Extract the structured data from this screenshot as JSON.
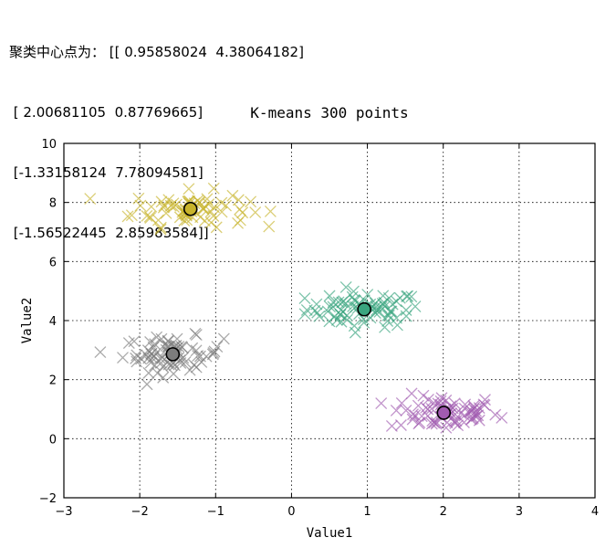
{
  "console": {
    "line1": "聚类中心点为： [[ 0.95858024  4.38064182]",
    "line2": " [ 2.00681105  0.87769665]",
    "line3": " [-1.33158124  7.78094581]",
    "line4": " [-1.56522445  2.85983584]]"
  },
  "chart_data": {
    "type": "scatter",
    "title": "K-means 300 points",
    "xlabel": "Value1",
    "ylabel": "Value2",
    "xlim": [
      -3,
      4
    ],
    "ylim": [
      -2,
      10
    ],
    "x_ticks": [
      -3,
      -2,
      -1,
      0,
      1,
      2,
      3,
      4
    ],
    "y_ticks": [
      -2,
      0,
      2,
      4,
      6,
      8,
      10
    ],
    "x_tick_labels": [
      "−3",
      "−2",
      "−1",
      "0",
      "1",
      "2",
      "3",
      "4"
    ],
    "y_tick_labels": [
      "−2",
      "0",
      "2",
      "4",
      "6",
      "8",
      "10"
    ],
    "grid": true,
    "clusters": [
      {
        "color": "#3aa57f",
        "center": [
          0.95858024,
          4.38064182
        ],
        "spread": [
          0.38,
          0.3
        ],
        "count": 75
      },
      {
        "color": "#a15bb0",
        "center": [
          2.00681105,
          0.87769665
        ],
        "spread": [
          0.36,
          0.3
        ],
        "count": 75
      },
      {
        "color": "#c8b42c",
        "center": [
          -1.33158124,
          7.78094581
        ],
        "spread": [
          0.38,
          0.3
        ],
        "count": 75
      },
      {
        "color": "#7d7d7d",
        "center": [
          -1.56522445,
          2.85983584
        ],
        "spread": [
          0.33,
          0.3
        ],
        "count": 75
      }
    ]
  }
}
